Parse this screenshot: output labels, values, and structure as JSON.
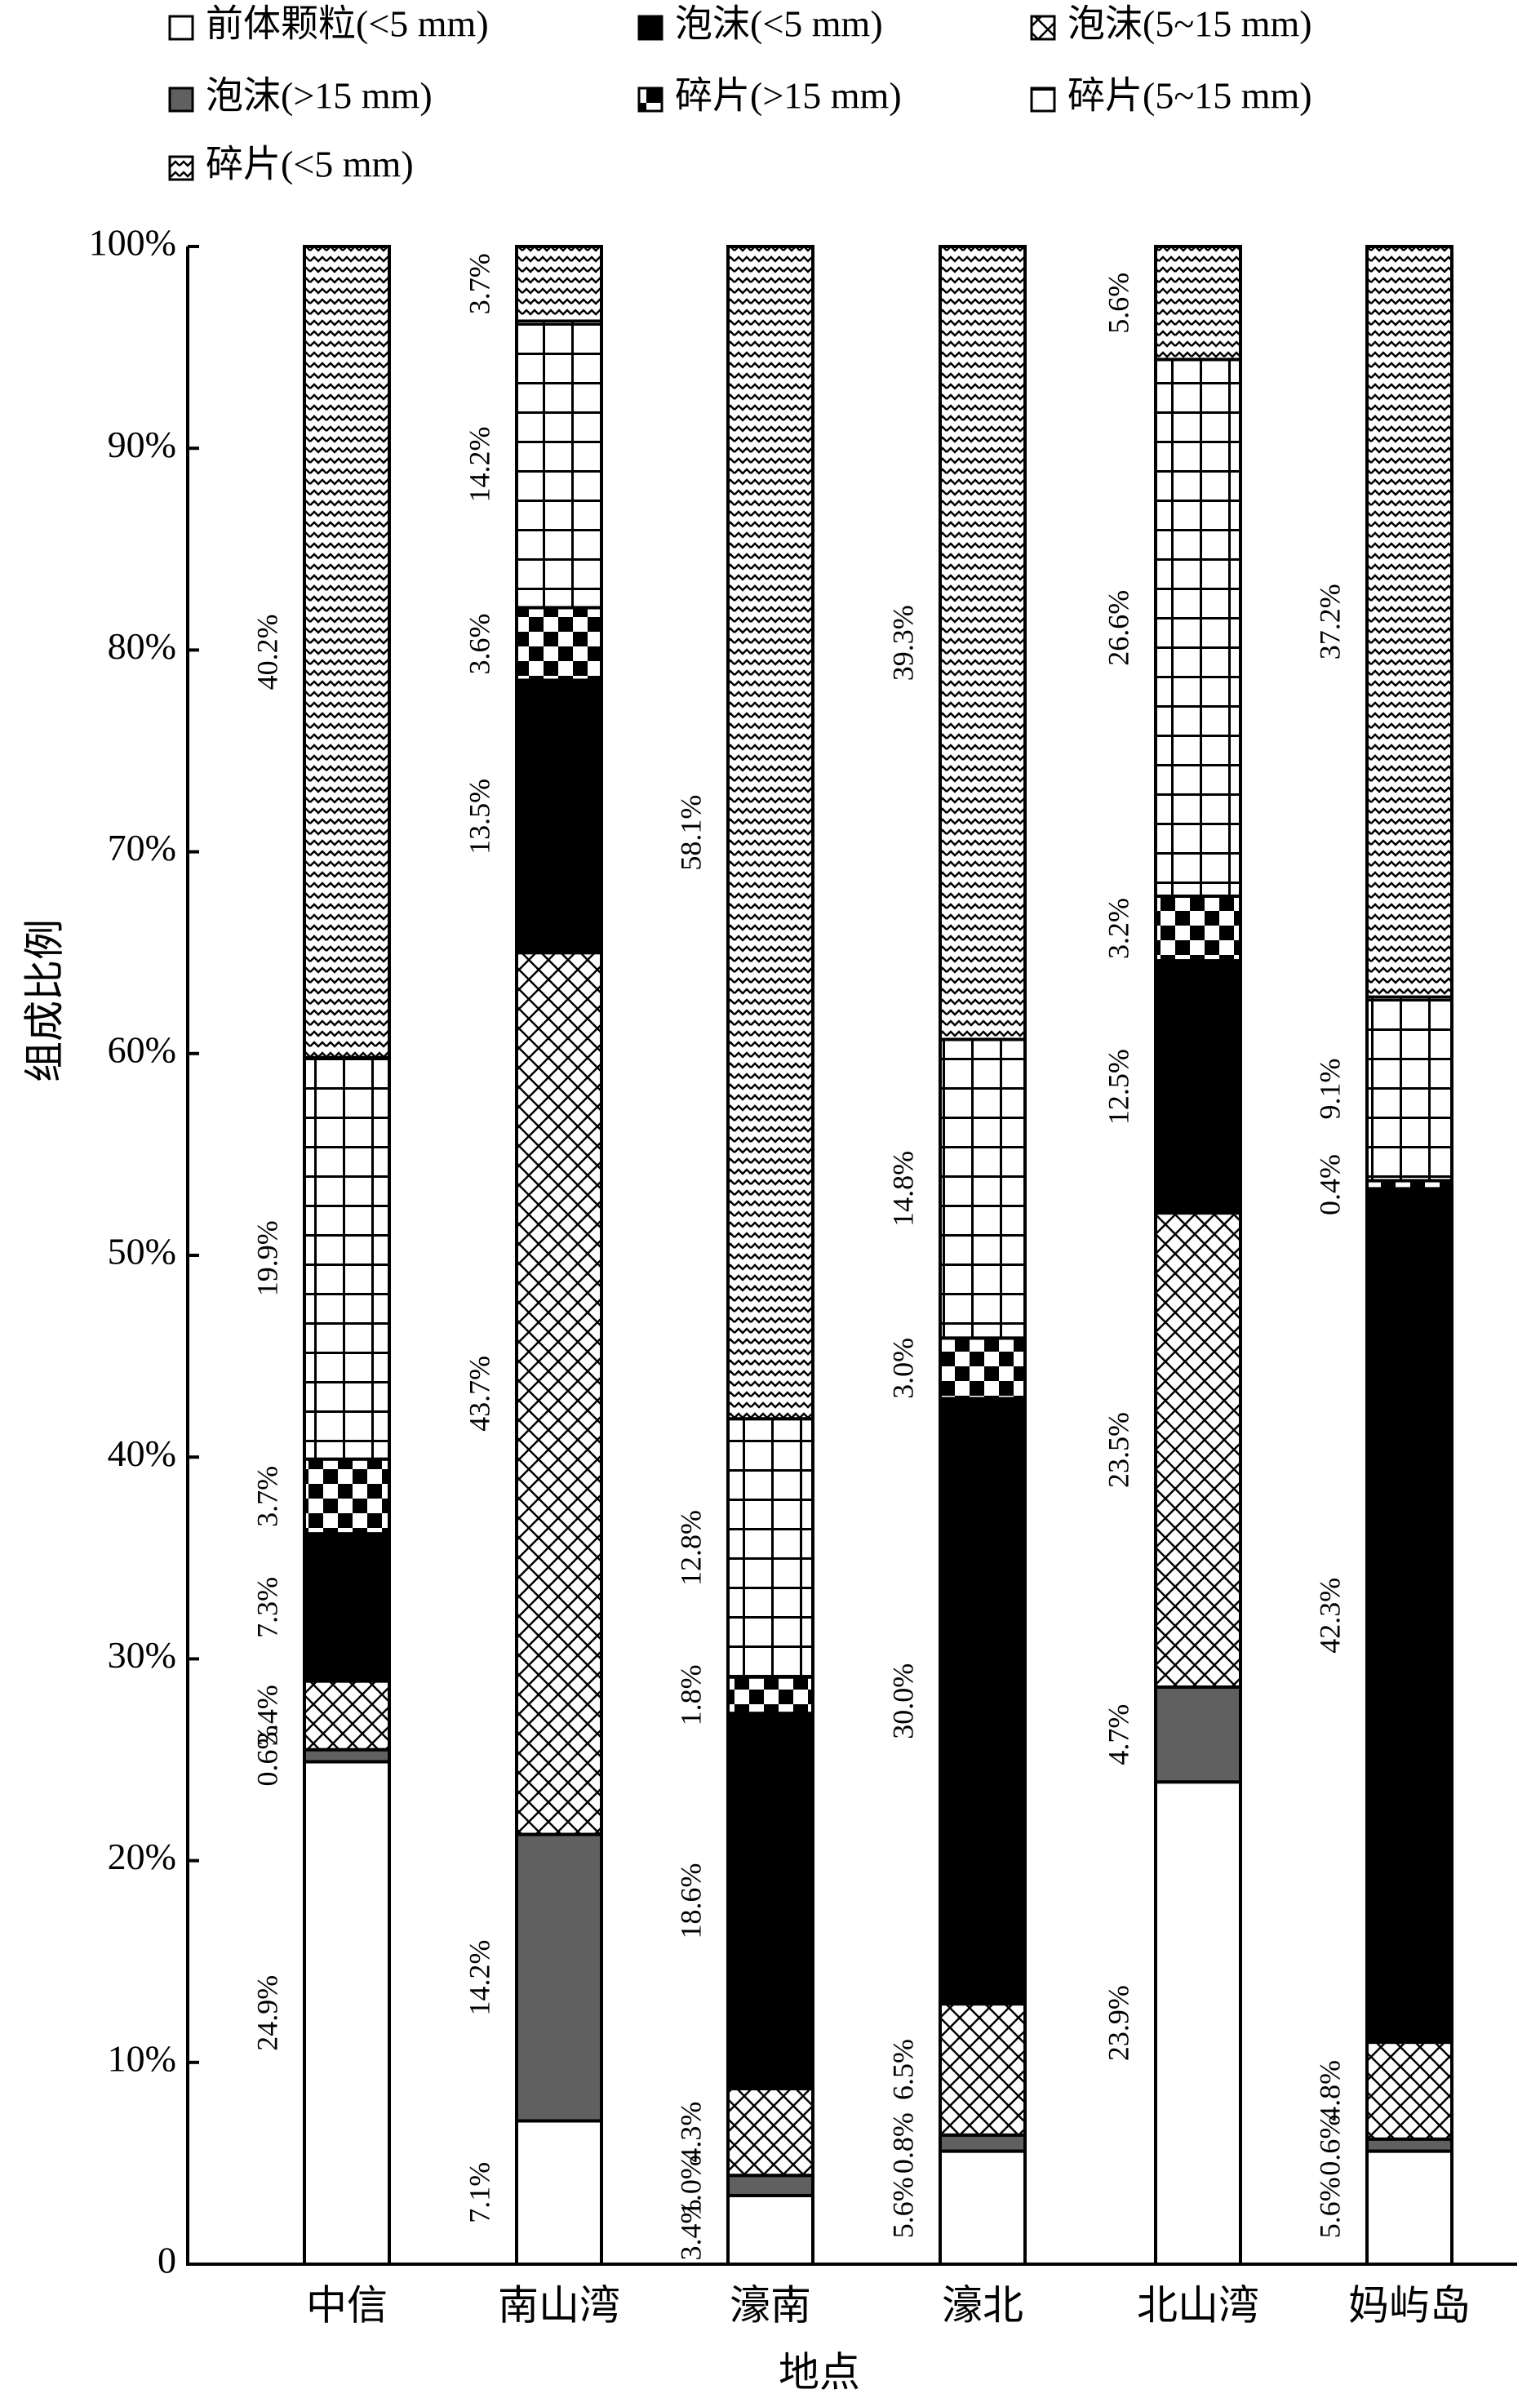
{
  "chart_data": {
    "type": "stacked_bar",
    "x_label": "地点",
    "y_label": "组成比例",
    "categories": [
      "中信",
      "南山湾",
      "濠南",
      "濠北",
      "北山湾",
      "妈屿岛"
    ],
    "ylim": [
      0,
      100
    ],
    "yticks": [
      0,
      {
        "value": 10,
        "label": "10%"
      },
      {
        "value": 20,
        "label": "20%"
      },
      {
        "value": 30,
        "label": "30%"
      },
      {
        "value": 40,
        "label": "40%"
      },
      {
        "value": 50,
        "label": "50%"
      },
      {
        "value": 60,
        "label": "60%"
      },
      {
        "value": 70,
        "label": "70%"
      },
      {
        "value": 80,
        "label": "80%"
      },
      {
        "value": 90,
        "label": "90%"
      },
      {
        "value": 100,
        "label": "100%"
      }
    ],
    "grid": false,
    "series": [
      {
        "name": "前体颗粒(<5 mm)",
        "color": "#ffffff",
        "pattern": "solid",
        "values": [
          24.9,
          7.1,
          3.4,
          5.6,
          23.9,
          5.6
        ],
        "value_labels": [
          "24.9%",
          "7.1%",
          "3.4%",
          "5.6%",
          "23.9%",
          "5.6%"
        ]
      },
      {
        "name": "泡沫(>15 mm)",
        "color": "#606060",
        "pattern": "solid",
        "values": [
          0.6,
          14.2,
          1.0,
          0.8,
          4.7,
          0.6
        ],
        "value_labels": [
          "0.6%",
          "14.2%",
          "1.0%",
          "0.8%",
          "4.7%",
          "0.6%"
        ]
      },
      {
        "name": "泡沫(5~15 mm)",
        "color": "#000000",
        "pattern": "crosshatch",
        "values": [
          3.4,
          43.7,
          4.3,
          6.5,
          23.5,
          4.8
        ],
        "value_labels": [
          "3.4%",
          "43.7%",
          "4.3%",
          "6.5%",
          "23.5%",
          "4.8%"
        ]
      },
      {
        "name": "泡沫(<5 mm)",
        "color": "#000000",
        "pattern": "solid",
        "values": [
          7.3,
          13.5,
          18.6,
          30.0,
          12.5,
          42.3
        ],
        "value_labels": [
          "7.3%",
          "13.5%",
          "18.6%",
          "30.0%",
          "12.5%",
          "42.3%"
        ]
      },
      {
        "name": "碎片(>15 mm)",
        "color": "#000000",
        "pattern": "checker",
        "values": [
          3.7,
          3.6,
          1.8,
          3.0,
          3.2,
          0.4
        ],
        "value_labels": [
          "3.7%",
          "3.6%",
          "1.8%",
          "3.0%",
          "3.2%",
          "0.4%"
        ]
      },
      {
        "name": "碎片(5~15 mm)",
        "color": "#000000",
        "pattern": "grid",
        "values": [
          19.9,
          14.2,
          12.8,
          14.8,
          26.6,
          9.1
        ],
        "value_labels": [
          "19.9%",
          "14.2%",
          "12.8%",
          "14.8%",
          "26.6%",
          "9.1%"
        ]
      },
      {
        "name": "碎片(<5 mm)",
        "color": "#000000",
        "pattern": "wavy",
        "values": [
          40.2,
          3.7,
          58.1,
          39.3,
          5.6,
          37.2
        ],
        "value_labels": [
          "40.2%",
          "3.7%",
          "58.1%",
          "39.3%",
          "5.6%",
          "37.2%"
        ]
      }
    ]
  }
}
